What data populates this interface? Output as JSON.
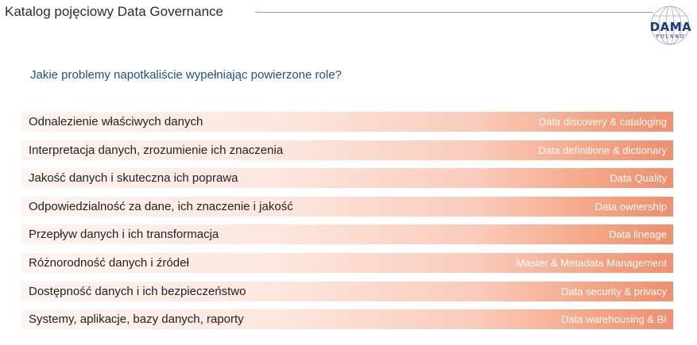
{
  "header": {
    "title": "Katalog pojęciowy Data Governance"
  },
  "logo": {
    "name": "DAMA",
    "subtitle": "POLAND",
    "color": "#1d3a7c"
  },
  "question": "Jakie problemy napotkaliście wypełniając powierzone role?",
  "colors": {
    "question_text": "#1f4e99",
    "row_gradient_end": "#f08f6d"
  },
  "rows": [
    {
      "label": "Odnalezienie właściwych danych",
      "tag": "Data discovery & cataloging"
    },
    {
      "label": "Interpretacja danych, zrozumienie ich znaczenia",
      "tag": "Data definitione & dictionary"
    },
    {
      "label": "Jakość danych i skuteczna ich poprawa",
      "tag": "Data Quality"
    },
    {
      "label": "Odpowiedzialność za dane, ich znaczenie i jakość",
      "tag": "Data ownership"
    },
    {
      "label": "Przepływ danych i ich transformacja",
      "tag": "Data lineage"
    },
    {
      "label": "Różnorodność danych i źródeł",
      "tag": "Master & Metadata Management"
    },
    {
      "label": "Dostępność danych i ich bezpieczeństwo",
      "tag": "Data security & privacy"
    },
    {
      "label": "Systemy, aplikacje, bazy danych, raporty",
      "tag": "Data warehousing & BI"
    }
  ]
}
